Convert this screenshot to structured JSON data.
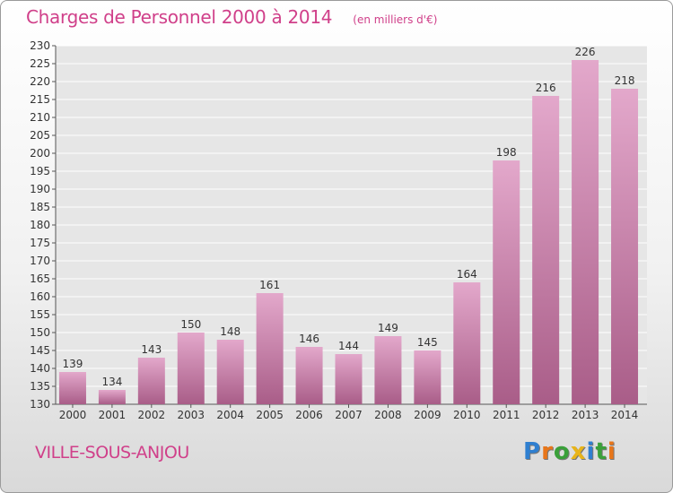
{
  "header": {
    "title": "Charges de Personnel 2000 à 2014",
    "unit": "(en milliers d'€)"
  },
  "footer": {
    "commune": "VILLE-SOUS-ANJOU",
    "logo": "Proxiti",
    "logo_letters": [
      {
        "ch": "P",
        "color": "#2f7fd0"
      },
      {
        "ch": "r",
        "color": "#e8761a"
      },
      {
        "ch": "o",
        "color": "#3aa03a"
      },
      {
        "ch": "x",
        "color": "#e8b41a"
      },
      {
        "ch": "i",
        "color": "#2f7fd0"
      },
      {
        "ch": "t",
        "color": "#3aa03a"
      },
      {
        "ch": "i",
        "color": "#e8761a"
      }
    ]
  },
  "colors": {
    "bar_top": "#e3a8cb",
    "bar_bottom": "#a95d88",
    "accent": "#d0408a"
  },
  "chart_data": {
    "type": "bar",
    "categories": [
      "2000",
      "2001",
      "2002",
      "2003",
      "2004",
      "2005",
      "2006",
      "2007",
      "2008",
      "2009",
      "2010",
      "2011",
      "2012",
      "2013",
      "2014"
    ],
    "values": [
      139,
      134,
      143,
      150,
      148,
      161,
      146,
      144,
      149,
      145,
      164,
      198,
      216,
      226,
      218
    ],
    "title": "Charges de Personnel 2000 à 2014",
    "ylim": [
      130,
      230
    ],
    "yticks": [
      130,
      135,
      140,
      145,
      150,
      155,
      160,
      165,
      170,
      175,
      180,
      185,
      190,
      195,
      200,
      205,
      210,
      215,
      220,
      225,
      230
    ],
    "grid": true,
    "data_labels": true
  }
}
